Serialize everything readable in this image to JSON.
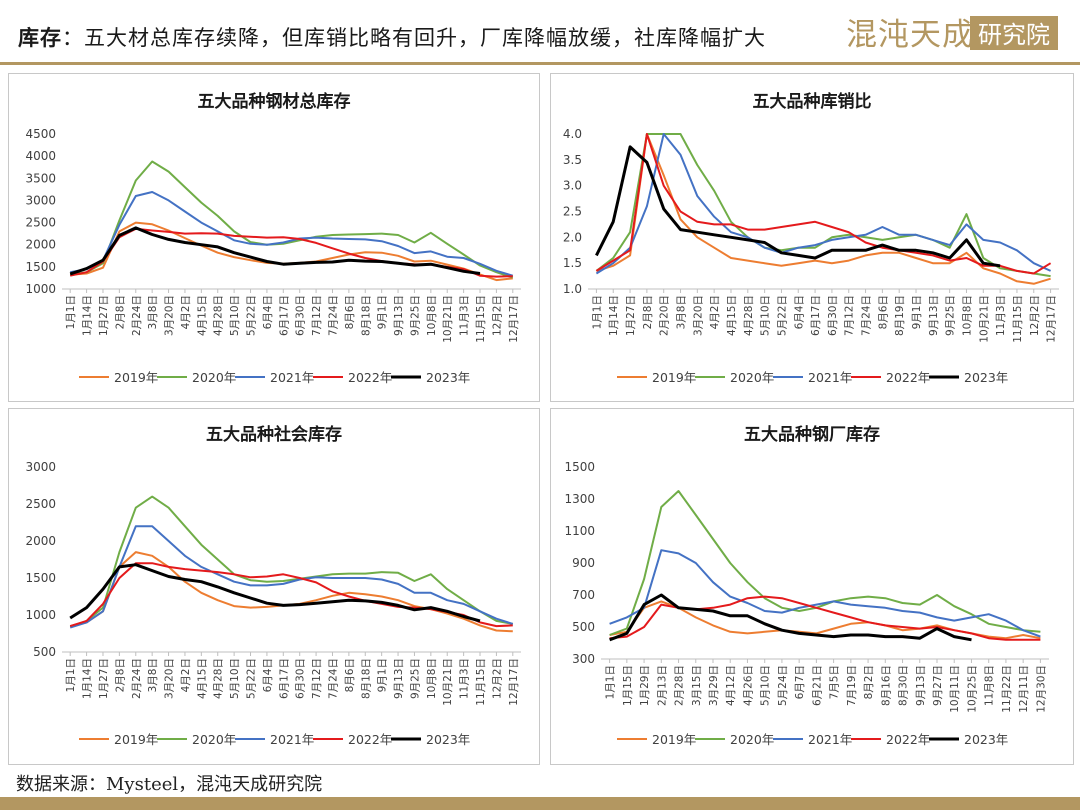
{
  "header": {
    "lead": "库存",
    "rest": "：五大材总库存续降，但库销比略有回升，厂库降幅放缓，社库降幅扩大"
  },
  "logo": {
    "text": "混沌天成研究院"
  },
  "footer": {
    "source": "数据来源：Mysteel，混沌天成研究院"
  },
  "colors": {
    "2019年": "#ED7D31",
    "2020年": "#70AD47",
    "2021年": "#4472C4",
    "2022年": "#E41A1C",
    "2023年": "#000000",
    "brand": "#B39761"
  },
  "chart_data": [
    {
      "type": "line",
      "title": "五大品种钢材总库存",
      "ylim": [
        1000,
        4500
      ],
      "yticks": [
        1000,
        1500,
        2000,
        2500,
        3000,
        3500,
        4000,
        4500
      ],
      "xtick_labels": [
        "1月1日",
        "1月14日",
        "1月27日",
        "2月8日",
        "2月24日",
        "3月8日",
        "3月20日",
        "4月2日",
        "4月15日",
        "4月28日",
        "5月10日",
        "5月22日",
        "6月4日",
        "6月17日",
        "6月30日",
        "7月12日",
        "7月24日",
        "8月6日",
        "8月18日",
        "9月1日",
        "9月13日",
        "9月25日",
        "10月8日",
        "10月21日",
        "11月3日",
        "11月15日",
        "12月2日",
        "12月17日"
      ],
      "grid": false,
      "legend": "bottom",
      "series": [
        {
          "name": "2019年",
          "values": [
            1320,
            1350,
            1480,
            2300,
            2500,
            2460,
            2320,
            2150,
            1980,
            1820,
            1720,
            1650,
            1590,
            1570,
            1590,
            1620,
            1700,
            1780,
            1830,
            1820,
            1750,
            1620,
            1640,
            1550,
            1460,
            1330,
            1200,
            1240
          ]
        },
        {
          "name": "2020年",
          "values": [
            1320,
            1380,
            1580,
            2550,
            3450,
            3880,
            3650,
            3300,
            2950,
            2650,
            2300,
            2060,
            2000,
            2020,
            2100,
            2180,
            2220,
            2230,
            2240,
            2250,
            2220,
            2050,
            2270,
            2020,
            1780,
            1530,
            1380,
            1260
          ]
        },
        {
          "name": "2021年",
          "values": [
            1380,
            1450,
            1650,
            2450,
            3100,
            3190,
            3000,
            2750,
            2500,
            2300,
            2100,
            2020,
            2000,
            2050,
            2140,
            2160,
            2140,
            2130,
            2120,
            2080,
            1970,
            1810,
            1850,
            1730,
            1700,
            1570,
            1410,
            1300
          ]
        },
        {
          "name": "2022年",
          "values": [
            1300,
            1380,
            1620,
            2170,
            2360,
            2320,
            2290,
            2250,
            2260,
            2250,
            2200,
            2180,
            2160,
            2170,
            2130,
            2040,
            1920,
            1800,
            1700,
            1630,
            1580,
            1560,
            1550,
            1500,
            1450,
            1300,
            1280,
            1290
          ]
        },
        {
          "name": "2023年",
          "values": [
            1340,
            1460,
            1650,
            2210,
            2380,
            2230,
            2120,
            2050,
            2000,
            1950,
            1820,
            1720,
            1620,
            1560,
            1580,
            1600,
            1610,
            1650,
            1630,
            1620,
            1580,
            1540,
            1560,
            1480,
            1400,
            1350
          ]
        }
      ]
    },
    {
      "type": "line",
      "title": "五大品种库销比",
      "ylim": [
        1.0,
        4.0
      ],
      "yticks": [
        1.0,
        1.5,
        2.0,
        2.5,
        3.0,
        3.5,
        4.0
      ],
      "ytick_labels": [
        "1.0",
        "1.5",
        "2.0",
        "2.5",
        "3.0",
        "3.5",
        "4.0"
      ],
      "xtick_labels": [
        "1月1日",
        "1月14日",
        "1月27日",
        "2月8日",
        "2月20日",
        "3月8日",
        "3月20日",
        "4月2日",
        "4月15日",
        "4月28日",
        "5月10日",
        "5月22日",
        "6月4日",
        "6月17日",
        "6月30日",
        "7月12日",
        "7月24日",
        "8月6日",
        "8月19日",
        "9月1日",
        "9月13日",
        "9月25日",
        "10月8日",
        "10月21日",
        "11月3日",
        "11月15日",
        "12月2日",
        "12月17日"
      ],
      "grid": false,
      "legend": "bottom",
      "series": [
        {
          "name": "2019年",
          "values": [
            1.35,
            1.45,
            1.65,
            4.0,
            3.2,
            2.35,
            2.0,
            1.8,
            1.6,
            1.55,
            1.5,
            1.45,
            1.5,
            1.55,
            1.5,
            1.55,
            1.65,
            1.7,
            1.7,
            1.6,
            1.5,
            1.5,
            1.7,
            1.4,
            1.3,
            1.15,
            1.1,
            1.2
          ]
        },
        {
          "name": "2020年",
          "values": [
            1.35,
            1.6,
            2.1,
            4.0,
            4.0,
            4.0,
            3.4,
            2.9,
            2.3,
            2.0,
            1.8,
            1.75,
            1.8,
            1.8,
            2.0,
            2.05,
            2.0,
            1.95,
            2.0,
            2.05,
            1.95,
            1.8,
            2.45,
            1.6,
            1.4,
            1.35,
            1.3,
            1.25
          ]
        },
        {
          "name": "2021年",
          "values": [
            1.3,
            1.5,
            1.8,
            2.6,
            4.0,
            3.6,
            2.8,
            2.4,
            2.1,
            2.0,
            1.8,
            1.7,
            1.8,
            1.85,
            1.95,
            2.0,
            2.05,
            2.2,
            2.05,
            2.05,
            1.95,
            1.85,
            2.25,
            1.95,
            1.9,
            1.75,
            1.5,
            1.35
          ]
        },
        {
          "name": "2022年",
          "values": [
            1.35,
            1.55,
            1.75,
            4.0,
            3.0,
            2.5,
            2.3,
            2.25,
            2.25,
            2.15,
            2.15,
            2.2,
            2.25,
            2.3,
            2.2,
            2.1,
            1.9,
            1.8,
            1.75,
            1.7,
            1.65,
            1.55,
            1.6,
            1.45,
            1.45,
            1.35,
            1.3,
            1.5
          ]
        },
        {
          "name": "2023年",
          "values": [
            1.65,
            2.3,
            3.75,
            3.45,
            2.55,
            2.15,
            2.1,
            2.05,
            2.0,
            1.95,
            1.9,
            1.7,
            1.65,
            1.6,
            1.75,
            1.75,
            1.75,
            1.85,
            1.75,
            1.75,
            1.7,
            1.6,
            1.95,
            1.5,
            1.45
          ]
        }
      ]
    },
    {
      "type": "line",
      "title": "五大品种社会库存",
      "ylim": [
        500,
        3000
      ],
      "yticks": [
        500,
        1000,
        1500,
        2000,
        2500,
        3000
      ],
      "xtick_labels": [
        "1月1日",
        "1月14日",
        "1月27日",
        "2月8日",
        "2月24日",
        "3月8日",
        "3月20日",
        "4月2日",
        "4月15日",
        "4月28日",
        "5月10日",
        "5月22日",
        "6月4日",
        "6月17日",
        "6月30日",
        "7月12日",
        "7月24日",
        "8月6日",
        "8月18日",
        "9月1日",
        "9月13日",
        "9月25日",
        "10月8日",
        "10月21日",
        "11月3日",
        "11月15日",
        "12月2日",
        "12月17日"
      ],
      "grid": false,
      "legend": "bottom",
      "series": [
        {
          "name": "2019年",
          "values": [
            850,
            900,
            1050,
            1650,
            1850,
            1800,
            1650,
            1450,
            1300,
            1200,
            1120,
            1100,
            1110,
            1130,
            1150,
            1200,
            1260,
            1300,
            1280,
            1250,
            1200,
            1120,
            1080,
            1020,
            950,
            860,
            790,
            780
          ]
        },
        {
          "name": "2020年",
          "values": [
            840,
            920,
            1100,
            1850,
            2450,
            2600,
            2450,
            2200,
            1950,
            1750,
            1550,
            1470,
            1450,
            1460,
            1490,
            1520,
            1550,
            1560,
            1560,
            1580,
            1570,
            1460,
            1550,
            1350,
            1200,
            1050,
            920,
            880
          ]
        },
        {
          "name": "2021年",
          "values": [
            830,
            900,
            1050,
            1650,
            2200,
            2200,
            2000,
            1800,
            1650,
            1550,
            1450,
            1400,
            1400,
            1420,
            1480,
            1510,
            1500,
            1500,
            1500,
            1480,
            1420,
            1300,
            1300,
            1200,
            1150,
            1050,
            950,
            880
          ]
        },
        {
          "name": "2022年",
          "values": [
            850,
            920,
            1150,
            1500,
            1700,
            1700,
            1650,
            1620,
            1600,
            1580,
            1550,
            1510,
            1520,
            1550,
            1500,
            1440,
            1320,
            1250,
            1190,
            1150,
            1110,
            1100,
            1080,
            1040,
            1000,
            900,
            850,
            860
          ]
        },
        {
          "name": "2023年",
          "values": [
            960,
            1100,
            1350,
            1650,
            1680,
            1600,
            1520,
            1480,
            1450,
            1380,
            1300,
            1230,
            1160,
            1130,
            1140,
            1160,
            1180,
            1200,
            1190,
            1170,
            1130,
            1070,
            1100,
            1050,
            980,
            920
          ]
        }
      ]
    },
    {
      "type": "line",
      "title": "五大品种钢厂库存",
      "ylim": [
        300,
        1500
      ],
      "yticks": [
        300,
        500,
        700,
        900,
        1100,
        1300,
        1500
      ],
      "xtick_labels": [
        "1月1日",
        "1月15日",
        "1月29日",
        "2月13日",
        "2月28日",
        "3月15日",
        "3月29日",
        "4月12日",
        "4月26日",
        "5月10日",
        "5月24日",
        "6月7日",
        "6月21日",
        "7月5日",
        "7月19日",
        "8月2日",
        "8月16日",
        "8月30日",
        "9月13日",
        "9月27日",
        "10月11日",
        "10月25日",
        "11月8日",
        "11月22日",
        "12月11日",
        "12月30日"
      ],
      "grid": false,
      "legend": "bottom",
      "series": [
        {
          "name": "2019年",
          "values": [
            450,
            470,
            620,
            660,
            620,
            560,
            510,
            470,
            460,
            470,
            480,
            470,
            460,
            490,
            520,
            530,
            510,
            480,
            490,
            510,
            480,
            460,
            440,
            430,
            450,
            430
          ]
        },
        {
          "name": "2020年",
          "values": [
            450,
            490,
            800,
            1250,
            1350,
            1200,
            1050,
            900,
            780,
            680,
            620,
            600,
            620,
            660,
            680,
            690,
            680,
            650,
            640,
            700,
            630,
            580,
            520,
            500,
            480,
            470
          ]
        },
        {
          "name": "2021年",
          "values": [
            520,
            560,
            620,
            980,
            960,
            900,
            780,
            690,
            650,
            600,
            590,
            620,
            640,
            660,
            640,
            630,
            620,
            600,
            590,
            560,
            540,
            560,
            580,
            540,
            480,
            440
          ]
        },
        {
          "name": "2022年",
          "values": [
            430,
            440,
            500,
            640,
            620,
            610,
            620,
            640,
            680,
            690,
            680,
            650,
            620,
            590,
            560,
            530,
            510,
            500,
            490,
            500,
            480,
            460,
            430,
            420,
            420,
            420
          ]
        },
        {
          "name": "2023年",
          "values": [
            420,
            460,
            640,
            700,
            620,
            610,
            600,
            570,
            570,
            520,
            480,
            460,
            450,
            440,
            450,
            450,
            440,
            440,
            430,
            490,
            440,
            420
          ]
        }
      ]
    }
  ]
}
